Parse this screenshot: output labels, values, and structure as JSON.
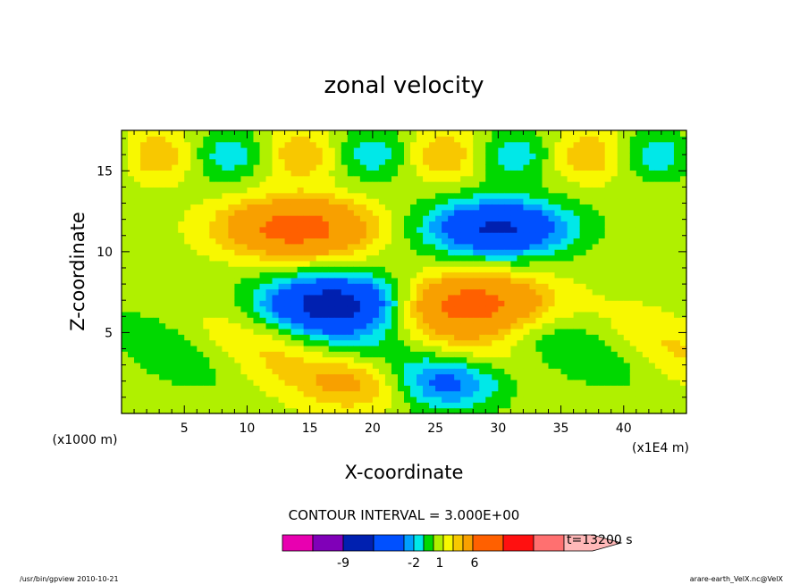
{
  "chart_data": {
    "type": "heatmap",
    "title": "zonal velocity",
    "xlabel": "X-coordinate",
    "ylabel": "Z-coordinate",
    "x_unit_left": "(x1000 m)",
    "x_unit_right": "(x1E4 m)",
    "xlim": [
      0,
      45
    ],
    "ylim": [
      0,
      17.5
    ],
    "xticks": [
      5,
      10,
      15,
      20,
      25,
      30,
      35,
      40
    ],
    "yticks": [
      5,
      10,
      15
    ],
    "contour_interval_label": "CONTOUR INTERVAL = 3.000E+00",
    "time_label": "t=13200 s",
    "colorbar": {
      "levels": [
        -15,
        -12,
        -9,
        -6,
        -3,
        -2,
        -1,
        0,
        1,
        2,
        3,
        6,
        9,
        12,
        15
      ],
      "colors": [
        "#e800b0",
        "#8000b8",
        "#0020b0",
        "#0050ff",
        "#00a0ff",
        "#00e8e8",
        "#00d800",
        "#b0f000",
        "#f8f800",
        "#f8c800",
        "#f8a000",
        "#ff6000",
        "#ff1010",
        "#ff7070",
        "#ffb8b8"
      ],
      "tick_labels": [
        "-9",
        "-2",
        "1",
        "6"
      ]
    },
    "features": [
      {
        "type": "positive_core",
        "x": 14,
        "z": 11.5,
        "peak": 7
      },
      {
        "type": "negative_core",
        "x": 30,
        "z": 11.5,
        "peak": -7
      },
      {
        "type": "negative_core",
        "x": 17,
        "z": 6.8,
        "peak": -8
      },
      {
        "type": "positive_core",
        "x": 28,
        "z": 6.8,
        "peak": 7
      },
      {
        "type": "positive_core",
        "x": 21,
        "z": 2,
        "peak": 6
      },
      {
        "type": "negative_core",
        "x": 24.5,
        "z": 2,
        "peak": -7
      }
    ]
  },
  "footer": {
    "left": "/usr/bin/gpview  2010-10-21",
    "right": "arare-earth_VelX.nc@VelX"
  }
}
